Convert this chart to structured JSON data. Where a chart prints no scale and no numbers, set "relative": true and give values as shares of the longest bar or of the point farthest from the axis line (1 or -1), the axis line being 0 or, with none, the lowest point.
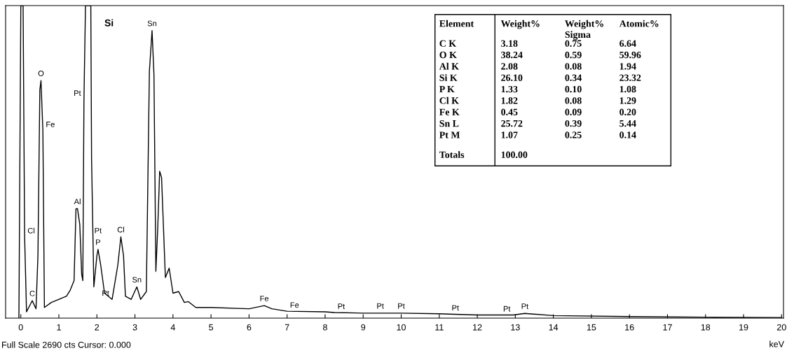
{
  "chart_data": [
    {
      "type": "line",
      "relative": true,
      "xlabel": "keV",
      "xlim": [
        -0.4,
        20.05
      ],
      "xticks": [
        0,
        1,
        2,
        3,
        4,
        5,
        6,
        7,
        8,
        9,
        10,
        11,
        12,
        13,
        14,
        15,
        16,
        17,
        18,
        19,
        20
      ],
      "grid": false,
      "legend": false,
      "series": [
        {
          "color": "#000000",
          "x": [
            -0.05,
            0.0,
            0.06,
            0.1,
            0.15,
            0.3,
            0.4,
            0.45,
            0.5,
            0.53,
            0.58,
            0.62,
            0.8,
            1.0,
            1.2,
            1.3,
            1.4,
            1.45,
            1.49,
            1.55,
            1.6,
            1.63,
            1.66,
            1.7,
            1.84,
            1.86,
            1.92,
            2.0,
            2.03,
            2.1,
            2.2,
            2.4,
            2.55,
            2.63,
            2.7,
            2.75,
            2.9,
            3.05,
            3.15,
            3.3,
            3.38,
            3.45,
            3.5,
            3.55,
            3.6,
            3.65,
            3.7,
            3.8,
            3.9,
            4.0,
            4.15,
            4.3,
            4.4,
            4.6,
            5.0,
            6.0,
            6.4,
            6.6,
            7.0,
            8.0,
            8.25,
            9.0,
            9.45,
            10.0,
            11.0,
            11.25,
            12.0,
            12.95,
            13.25,
            14.0,
            16.0,
            18.0,
            20.0
          ],
          "values": [
            0,
            1.0,
            1.0,
            0.26,
            0.02,
            0.056,
            0.03,
            0.2,
            0.73,
            0.76,
            0.6,
            0.034,
            0.05,
            0.06,
            0.07,
            0.09,
            0.12,
            0.35,
            0.35,
            0.3,
            0.14,
            0.12,
            0.7,
            1.0,
            1.0,
            0.51,
            0.1,
            0.2,
            0.22,
            0.17,
            0.08,
            0.06,
            0.17,
            0.26,
            0.2,
            0.07,
            0.06,
            0.1,
            0.06,
            0.085,
            0.79,
            0.92,
            0.78,
            0.15,
            0.29,
            0.47,
            0.45,
            0.13,
            0.16,
            0.08,
            0.085,
            0.05,
            0.053,
            0.034,
            0.034,
            0.03,
            0.04,
            0.03,
            0.022,
            0.02,
            0.018,
            0.016,
            0.016,
            0.016,
            0.014,
            0.013,
            0.01,
            0.01,
            0.015,
            0.008,
            0.005,
            0.003,
            0.002
          ]
        }
      ],
      "annotations": [
        {
          "text": "Cl",
          "x": 0.1,
          "y": 0.26
        },
        {
          "text": "C",
          "x": 0.3,
          "y": 0.056
        },
        {
          "text": "O",
          "x": 0.53,
          "y": 0.76
        },
        {
          "text": "Fe",
          "x": 0.58,
          "y": 0.6
        },
        {
          "text": "Pt",
          "x": 1.66,
          "y": 0.7
        },
        {
          "text": "Si",
          "x": 1.84,
          "y": 1.0
        },
        {
          "text": "Sn",
          "x": 3.45,
          "y": 0.92
        },
        {
          "text": "Al",
          "x": 1.49,
          "y": 0.35
        },
        {
          "text": "P",
          "x": 2.03,
          "y": 0.22
        },
        {
          "text": "Pt",
          "x": 2.03,
          "y": 0.22
        },
        {
          "text": "Pt",
          "x": 2.4,
          "y": 0.06
        },
        {
          "text": "Cl",
          "x": 2.63,
          "y": 0.26
        },
        {
          "text": "Sn",
          "x": 3.05,
          "y": 0.1
        },
        {
          "text": "Fe",
          "x": 6.4,
          "y": 0.04
        },
        {
          "text": "Fe",
          "x": 7.0,
          "y": 0.022
        },
        {
          "text": "Pt",
          "x": 8.25,
          "y": 0.018
        },
        {
          "text": "Pt",
          "x": 9.45,
          "y": 0.016
        },
        {
          "text": "Pt",
          "x": 10.0,
          "y": 0.016
        },
        {
          "text": "Pt",
          "x": 11.25,
          "y": 0.013
        },
        {
          "text": "Pt",
          "x": 12.95,
          "y": 0.01
        },
        {
          "text": "Pt",
          "x": 13.25,
          "y": 0.015
        },
        "Full Scale 2690 cts Cursor: 0.000"
      ]
    },
    {
      "type": "other",
      "annotations": [
        "Element",
        "Weight%",
        "Weight%\nSigma",
        "Atomic%",
        "C K",
        "3.18",
        "0.75",
        "6.64",
        "O K",
        "38.24",
        "0.59",
        "59.96",
        "Al K",
        "2.08",
        "0.08",
        "1.94",
        "Si K",
        "26.10",
        "0.34",
        "23.32",
        "P K",
        "1.33",
        "0.10",
        "1.08",
        "Cl K",
        "1.82",
        "0.08",
        "1.29",
        "Fe K",
        "0.45",
        "0.09",
        "0.20",
        "Sn L",
        "25.72",
        "0.39",
        "5.44",
        "Pt M",
        "1.07",
        "0.25",
        "0.14",
        "Totals",
        "100.00"
      ]
    }
  ]
}
